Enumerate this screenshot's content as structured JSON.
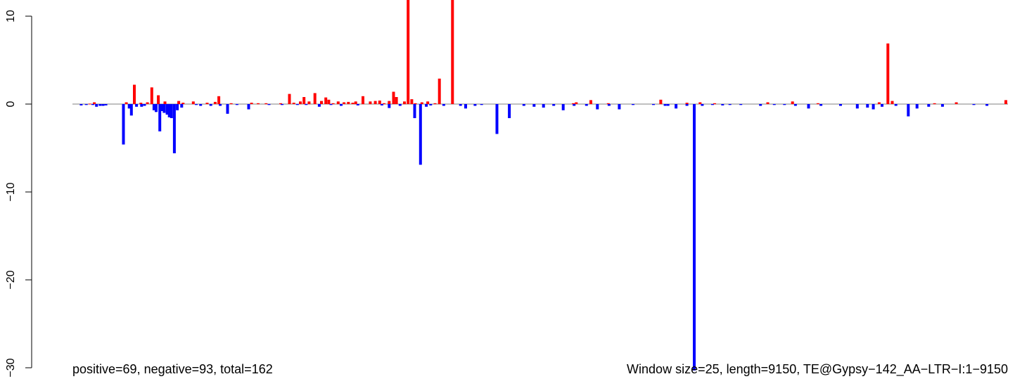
{
  "chart_data": {
    "type": "bar",
    "x_range": [
      1,
      9150
    ],
    "ylim": [
      -30,
      12
    ],
    "y_ticks": [
      10,
      0,
      -10,
      -20,
      -30
    ],
    "y_tick_labels": [
      "10",
      "0",
      "−10",
      "−20",
      "−30"
    ],
    "xlabel": "",
    "ylabel": "",
    "grid": false,
    "baseline": 0,
    "colors": {
      "positive": "#ff0000",
      "negative": "#0000ff",
      "baseline": "#808080"
    },
    "annotations": {
      "left": "positive=69, negative=93, total=162",
      "right": "Window size=25, length=9150, TE@Gypsy−142_AA−LTR−I:1−9150"
    },
    "positive": {
      "count": 69,
      "bars": [
        [
          240,
          0.05
        ],
        [
          300,
          0.2
        ],
        [
          740,
          0.2
        ],
        [
          850,
          2.2
        ],
        [
          940,
          0.15
        ],
        [
          1030,
          0.2
        ],
        [
          1090,
          1.9
        ],
        [
          1180,
          1.0
        ],
        [
          1270,
          0.3
        ],
        [
          1460,
          0.35
        ],
        [
          1520,
          0.15
        ],
        [
          1660,
          0.3
        ],
        [
          1850,
          0.15
        ],
        [
          1960,
          0.25
        ],
        [
          2010,
          0.9
        ],
        [
          2180,
          0.1
        ],
        [
          2460,
          0.15
        ],
        [
          2550,
          0.1
        ],
        [
          2660,
          0.1
        ],
        [
          2860,
          0.1
        ],
        [
          2980,
          1.15
        ],
        [
          3040,
          0.15
        ],
        [
          3130,
          0.3
        ],
        [
          3180,
          0.8
        ],
        [
          3250,
          0.3
        ],
        [
          3330,
          1.25
        ],
        [
          3420,
          0.35
        ],
        [
          3480,
          0.75
        ],
        [
          3520,
          0.5
        ],
        [
          3580,
          0.1
        ],
        [
          3650,
          0.3
        ],
        [
          3730,
          0.2
        ],
        [
          3790,
          0.25
        ],
        [
          3850,
          0.15
        ],
        [
          3890,
          0.3
        ],
        [
          3990,
          0.9
        ],
        [
          4090,
          0.3
        ],
        [
          4160,
          0.35
        ],
        [
          4220,
          0.4
        ],
        [
          4280,
          0.1
        ],
        [
          4350,
          0.35
        ],
        [
          4410,
          1.4
        ],
        [
          4450,
          0.8
        ],
        [
          4560,
          0.3
        ],
        [
          4610,
          12.0
        ],
        [
          4660,
          0.55
        ],
        [
          4710,
          0.1
        ],
        [
          4800,
          0.2
        ],
        [
          4880,
          0.3
        ],
        [
          4980,
          0.1
        ],
        [
          5040,
          2.9
        ],
        [
          5220,
          12.0
        ],
        [
          6880,
          0.1
        ],
        [
          6920,
          0.2
        ],
        [
          7120,
          0.45
        ],
        [
          7360,
          0.1
        ],
        [
          8080,
          0.5
        ],
        [
          8440,
          0.15
        ],
        [
          8620,
          0.2
        ],
        [
          8820,
          0.1
        ],
        [
          9550,
          0.2
        ],
        [
          9890,
          0.3
        ],
        [
          10240,
          0.1
        ],
        [
          11080,
          0.2
        ],
        [
          11200,
          6.9
        ],
        [
          11260,
          0.35
        ],
        [
          11840,
          0.1
        ],
        [
          12140,
          0.2
        ],
        [
          12820,
          0.45
        ]
      ]
    },
    "negative": {
      "count": 93,
      "bars": [
        [
          120,
          -0.15
        ],
        [
          190,
          -0.1
        ],
        [
          280,
          -0.1
        ],
        [
          330,
          -0.3
        ],
        [
          380,
          -0.2
        ],
        [
          420,
          -0.2
        ],
        [
          460,
          -0.15
        ],
        [
          700,
          -4.6
        ],
        [
          780,
          -0.5
        ],
        [
          810,
          -1.3
        ],
        [
          880,
          -0.3
        ],
        [
          950,
          -0.3
        ],
        [
          990,
          -0.2
        ],
        [
          1120,
          -0.7
        ],
        [
          1150,
          -0.9
        ],
        [
          1200,
          -3.1
        ],
        [
          1230,
          -0.8
        ],
        [
          1260,
          -1.0
        ],
        [
          1300,
          -1.2
        ],
        [
          1330,
          -1.5
        ],
        [
          1360,
          -1.6
        ],
        [
          1400,
          -5.6
        ],
        [
          1440,
          -0.7
        ],
        [
          1500,
          -0.4
        ],
        [
          1700,
          -0.1
        ],
        [
          1760,
          -0.2
        ],
        [
          1900,
          -0.2
        ],
        [
          2030,
          -0.2
        ],
        [
          2130,
          -1.1
        ],
        [
          2260,
          -0.1
        ],
        [
          2420,
          -0.6
        ],
        [
          2700,
          -0.1
        ],
        [
          2880,
          -0.1
        ],
        [
          3090,
          -0.1
        ],
        [
          3210,
          -0.1
        ],
        [
          3390,
          -0.3
        ],
        [
          3550,
          -0.1
        ],
        [
          3690,
          -0.2
        ],
        [
          3920,
          -0.15
        ],
        [
          4250,
          -0.15
        ],
        [
          4350,
          -0.45
        ],
        [
          4500,
          -0.2
        ],
        [
          4700,
          -1.6
        ],
        [
          4780,
          -6.9
        ],
        [
          4860,
          -0.3
        ],
        [
          4920,
          -0.15
        ],
        [
          5100,
          -0.2
        ],
        [
          5330,
          -0.2
        ],
        [
          5400,
          -0.5
        ],
        [
          5530,
          -0.2
        ],
        [
          5620,
          -0.1
        ],
        [
          5830,
          -3.4
        ],
        [
          6000,
          -1.6
        ],
        [
          6200,
          -0.2
        ],
        [
          6340,
          -0.3
        ],
        [
          6470,
          -0.4
        ],
        [
          6610,
          -0.2
        ],
        [
          6740,
          -0.7
        ],
        [
          6890,
          -0.2
        ],
        [
          7060,
          -0.2
        ],
        [
          7210,
          -0.6
        ],
        [
          7370,
          -0.2
        ],
        [
          7510,
          -0.6
        ],
        [
          7700,
          -0.1
        ],
        [
          7980,
          -0.1
        ],
        [
          8140,
          -0.2
        ],
        [
          8180,
          -0.2
        ],
        [
          8290,
          -0.5
        ],
        [
          8440,
          -0.2
        ],
        [
          8540,
          -30.3
        ],
        [
          8650,
          -0.2
        ],
        [
          8790,
          -0.1
        ],
        [
          8930,
          -0.15
        ],
        [
          9030,
          -0.1
        ],
        [
          9180,
          -0.1
        ],
        [
          9450,
          -0.2
        ],
        [
          9640,
          -0.1
        ],
        [
          9780,
          -0.1
        ],
        [
          9930,
          -0.2
        ],
        [
          10110,
          -0.5
        ],
        [
          10280,
          -0.2
        ],
        [
          10550,
          -0.2
        ],
        [
          10780,
          -0.5
        ],
        [
          10920,
          -0.4
        ],
        [
          11000,
          -0.6
        ],
        [
          11120,
          -0.3
        ],
        [
          11310,
          -0.2
        ],
        [
          11480,
          -1.4
        ],
        [
          11600,
          -0.5
        ],
        [
          11760,
          -0.3
        ],
        [
          11950,
          -0.3
        ],
        [
          12380,
          -0.1
        ],
        [
          12560,
          -0.2
        ]
      ]
    }
  }
}
